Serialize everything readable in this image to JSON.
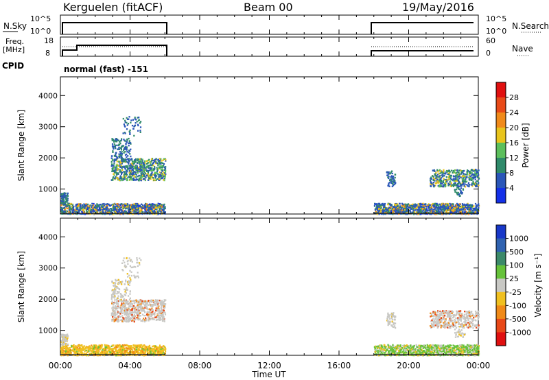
{
  "header": {
    "station": "Kerguelen (fitACF)",
    "beam": "Beam 00",
    "date": "19/May/2016"
  },
  "sky_panel": {
    "left_label": "N.Sky",
    "right_label": "N.Search",
    "left_ticks": [
      "10^5",
      "10^0"
    ],
    "right_ticks": [
      "10^5",
      "10^0"
    ]
  },
  "freq_panel": {
    "left_label_line1": "Freq.",
    "left_label_line2": "[MHz]",
    "right_label": "Nave",
    "left_ticks": [
      "18",
      "8"
    ],
    "right_ticks": [
      "60",
      "0"
    ]
  },
  "cpid": {
    "label": "CPID",
    "text": "normal (fast) -151"
  },
  "chart_data": [
    {
      "type": "heatmap",
      "name": "power",
      "ylabel": "Slant Range [km]",
      "ylim": [
        200,
        4600
      ],
      "yticks": [
        "1000",
        "2000",
        "3000",
        "4000"
      ],
      "colorbar_label": "Power [dB]",
      "colorbar_ticks": [
        "4",
        "8",
        "12",
        "16",
        "20",
        "24",
        "28"
      ],
      "colorbar_colors": [
        "#1430e8",
        "#2a56b8",
        "#2f8a6a",
        "#5cbf5c",
        "#e8c41c",
        "#f08a1a",
        "#e84a18",
        "#e01010"
      ]
    },
    {
      "type": "heatmap",
      "name": "velocity",
      "ylabel": "Slant Range [km]",
      "ylim": [
        200,
        4600
      ],
      "yticks": [
        "1000",
        "2000",
        "3000",
        "4000"
      ],
      "colorbar_label": "Velocity [m s⁻¹]",
      "colorbar_ticks": [
        "1000",
        "500",
        "100",
        "25",
        "-25",
        "-100",
        "-500",
        "-1000"
      ],
      "colorbar_colors": [
        "#1838c8",
        "#2f62b0",
        "#3c8a6a",
        "#66c23a",
        "#c8c8c4",
        "#f0c020",
        "#f08a18",
        "#e84818",
        "#e01010"
      ]
    }
  ],
  "x_axis": {
    "label": "Time UT",
    "ticks": [
      "00:00",
      "04:00",
      "08:00",
      "12:00",
      "16:00",
      "20:00",
      "00:00"
    ]
  }
}
